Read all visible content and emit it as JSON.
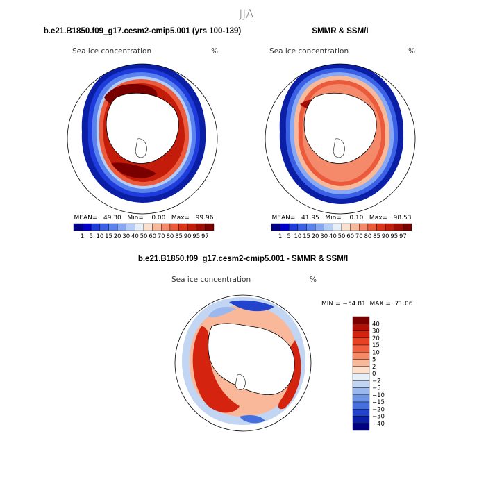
{
  "figure": {
    "title": "JJA",
    "panels": [
      {
        "id": "model",
        "heading": "b.e21.B1850.f09_g17.cesm2-cmip5.001 (yrs 100-139)",
        "variable": "Sea ice concentration",
        "units": "%",
        "stats": "MEAN=   49.30   Min=    0.00   Max=   99.96"
      },
      {
        "id": "obs",
        "heading": "SMMR & SSM/I",
        "variable": "Sea ice concentration",
        "units": "%",
        "stats": "MEAN=   41.95   Min=    0.10   Max=   98.53"
      },
      {
        "id": "diff",
        "heading": "b.e21.B1850.f09_g17.cesm2-cmip5.001 - SMMR & SSM/I",
        "variable": "Sea ice concentration",
        "units": "%",
        "stats": "MIN = −54.81  MAX =  71.06"
      }
    ]
  },
  "chart_data": [
    {
      "type": "heatmap",
      "panel": "model",
      "projection": "south-polar-stereographic",
      "colorbar": {
        "orientation": "horizontal",
        "levels": [
          "1",
          "5",
          "10",
          "15",
          "20",
          "30",
          "40",
          "50",
          "60",
          "70",
          "80",
          "85",
          "90",
          "95",
          "97"
        ],
        "colors": [
          "#00008b",
          "#0000cd",
          "#1e3cdc",
          "#3a60e6",
          "#5a82ee",
          "#86a8f4",
          "#b4ccf8",
          "#e6eef8",
          "#fbe0d0",
          "#f8b89a",
          "#f48a6a",
          "#ec5a3c",
          "#dc3418",
          "#c41c0a",
          "#a00c04",
          "#7a0000"
        ]
      }
    },
    {
      "type": "heatmap",
      "panel": "obs",
      "projection": "south-polar-stereographic",
      "colorbar": {
        "orientation": "horizontal",
        "levels": [
          "1",
          "5",
          "10",
          "15",
          "20",
          "30",
          "40",
          "50",
          "60",
          "70",
          "80",
          "85",
          "90",
          "95",
          "97"
        ],
        "colors": [
          "#00008b",
          "#0000cd",
          "#1e3cdc",
          "#3a60e6",
          "#5a82ee",
          "#86a8f4",
          "#b4ccf8",
          "#e6eef8",
          "#fbe0d0",
          "#f8b89a",
          "#f48a6a",
          "#ec5a3c",
          "#dc3418",
          "#c41c0a",
          "#a00c04",
          "#7a0000"
        ]
      }
    },
    {
      "type": "heatmap",
      "panel": "diff",
      "projection": "south-polar-stereographic",
      "colorbar": {
        "orientation": "vertical",
        "levels": [
          "40",
          "30",
          "20",
          "15",
          "10",
          "5",
          "2",
          "0",
          "−2",
          "−5",
          "−10",
          "−15",
          "−20",
          "−30",
          "−40"
        ],
        "colors": [
          "#7a0000",
          "#b01006",
          "#d42410",
          "#e84224",
          "#f06040",
          "#f68a66",
          "#fab89a",
          "#fde0cc",
          "#e6eef8",
          "#c2d6f4",
          "#9ab8ee",
          "#6e94e6",
          "#4670de",
          "#2244cc",
          "#0a1ea6",
          "#000080"
        ]
      }
    }
  ]
}
